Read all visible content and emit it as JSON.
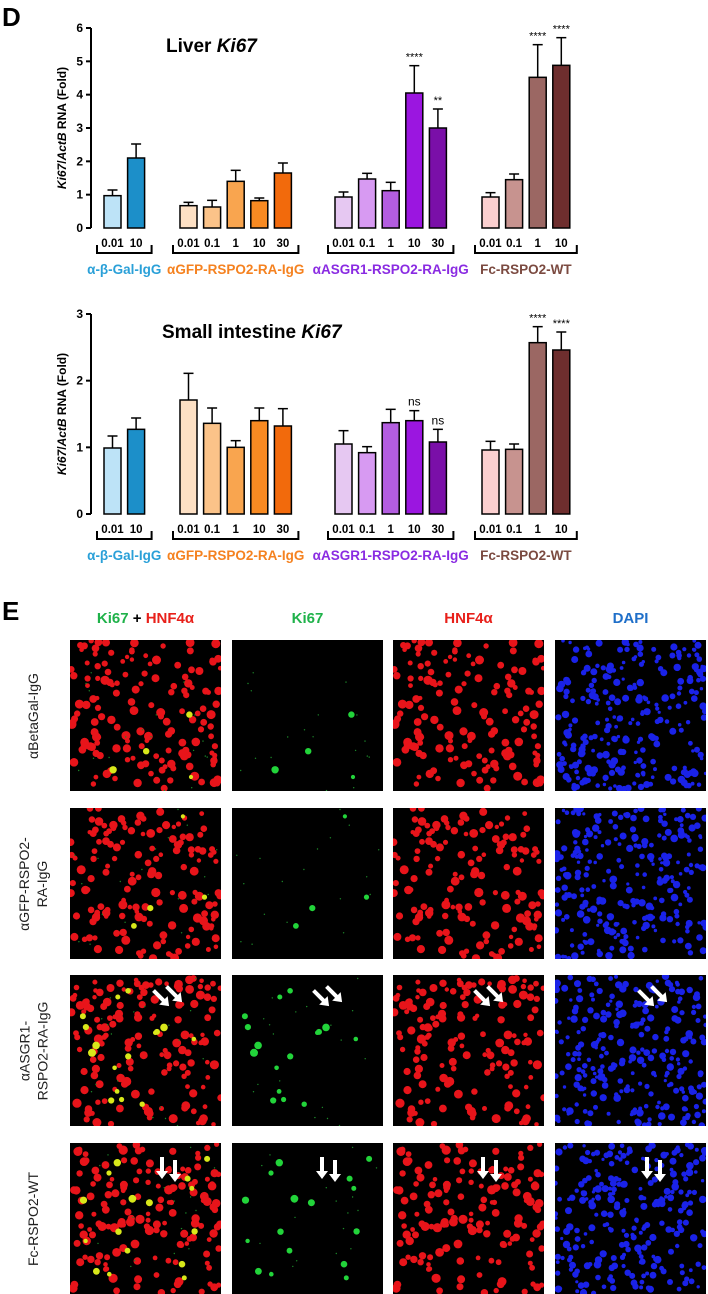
{
  "panel_d_letter": "D",
  "panel_e_letter": "E",
  "chart_data": [
    {
      "type": "bar",
      "title": "Liver Ki67",
      "title_plain": "Liver ",
      "title_italic": "Ki67",
      "ylabel_parts": [
        "Ki67",
        "/",
        "ActB",
        " RNA (Fold)"
      ],
      "ylim": [
        0,
        6
      ],
      "yticks": [
        0,
        1,
        2,
        3,
        4,
        5,
        6
      ],
      "groups": [
        {
          "name": "α-β-Gal-IgG",
          "color": "#2aa0d8",
          "doses": [
            "0.01",
            "10"
          ],
          "values": [
            0.97,
            2.1
          ],
          "errors": [
            0.17,
            0.42
          ],
          "colors": [
            "#bde3f7",
            "#1c8fc9"
          ],
          "sig": [
            "",
            ""
          ]
        },
        {
          "name": "αGFP-RSPO2-RA-IgG",
          "color": "#f58220",
          "doses": [
            "0.01",
            "0.1",
            "1",
            "10",
            "30"
          ],
          "values": [
            0.67,
            0.63,
            1.4,
            0.82,
            1.65
          ],
          "errors": [
            0.1,
            0.2,
            0.33,
            0.08,
            0.3
          ],
          "colors": [
            "#fde0c4",
            "#fbc389",
            "#f9a54f",
            "#f88a22",
            "#f26a0c"
          ],
          "sig": [
            "",
            "",
            "",
            "",
            ""
          ]
        },
        {
          "name": "αASGR1-RSPO2-RA-IgG",
          "color": "#8a2be2",
          "doses": [
            "0.01",
            "0.1",
            "1",
            "10",
            "30"
          ],
          "values": [
            0.93,
            1.47,
            1.12,
            4.05,
            3.0
          ],
          "errors": [
            0.15,
            0.17,
            0.25,
            0.82,
            0.57
          ],
          "colors": [
            "#e6c8f2",
            "#d79af2",
            "#b35de0",
            "#9b16e0",
            "#7a0fa8"
          ],
          "sig": [
            "",
            "",
            "",
            "****",
            "**"
          ]
        },
        {
          "name": "Fc-RSPO2-WT",
          "color": "#7b4a40",
          "doses": [
            "0.01",
            "0.1",
            "1",
            "10"
          ],
          "values": [
            0.93,
            1.45,
            4.52,
            4.88
          ],
          "errors": [
            0.13,
            0.17,
            0.98,
            0.83
          ],
          "colors": [
            "#fbcfcf",
            "#c7938f",
            "#9b6763",
            "#6e2e2e"
          ],
          "sig": [
            "",
            "",
            "****",
            "****"
          ]
        }
      ]
    },
    {
      "type": "bar",
      "title": "Small intestine Ki67",
      "title_plain": "Small intestine ",
      "title_italic": "Ki67",
      "ylabel_parts": [
        "Ki67",
        "/",
        "ActB",
        " RNA (Fold)"
      ],
      "ylim": [
        0,
        3
      ],
      "yticks": [
        0,
        1,
        2,
        3
      ],
      "groups": [
        {
          "name": "α-β-Gal-IgG",
          "color": "#2aa0d8",
          "doses": [
            "0.01",
            "10"
          ],
          "values": [
            0.99,
            1.27
          ],
          "errors": [
            0.18,
            0.17
          ],
          "colors": [
            "#bde3f7",
            "#1c8fc9"
          ],
          "sig": [
            "",
            ""
          ]
        },
        {
          "name": "αGFP-RSPO2-RA-IgG",
          "color": "#f58220",
          "doses": [
            "0.01",
            "0.1",
            "1",
            "10",
            "30"
          ],
          "values": [
            1.71,
            1.36,
            1.0,
            1.4,
            1.32
          ],
          "errors": [
            0.4,
            0.23,
            0.1,
            0.19,
            0.26
          ],
          "colors": [
            "#fde0c4",
            "#fbc389",
            "#f9a54f",
            "#f88a22",
            "#f26a0c"
          ],
          "sig": [
            "",
            "",
            "",
            "",
            ""
          ]
        },
        {
          "name": "αASGR1-RSPO2-RA-IgG",
          "color": "#8a2be2",
          "doses": [
            "0.01",
            "0.1",
            "1",
            "10",
            "30"
          ],
          "values": [
            1.05,
            0.92,
            1.37,
            1.4,
            1.08
          ],
          "errors": [
            0.2,
            0.09,
            0.2,
            0.15,
            0.19
          ],
          "colors": [
            "#e6c8f2",
            "#d79af2",
            "#b35de0",
            "#9b16e0",
            "#7a0fa8"
          ],
          "sig": [
            "",
            "",
            "",
            "ns",
            "ns"
          ]
        },
        {
          "name": "Fc-RSPO2-WT",
          "color": "#7b4a40",
          "doses": [
            "0.01",
            "0.1",
            "1",
            "10"
          ],
          "values": [
            0.96,
            0.97,
            2.57,
            2.46
          ],
          "errors": [
            0.13,
            0.08,
            0.24,
            0.27
          ],
          "colors": [
            "#fbcfcf",
            "#c7938f",
            "#9b6763",
            "#6e2e2e"
          ],
          "sig": [
            "",
            "",
            "****",
            "****"
          ]
        }
      ]
    }
  ],
  "panel_e": {
    "columns": [
      {
        "parts": [
          {
            "text": "Ki67",
            "color": "#1fb24a"
          },
          {
            "text": " + ",
            "color": "#000000"
          },
          {
            "text": "HNF4α",
            "color": "#e8201a"
          }
        ]
      },
      {
        "parts": [
          {
            "text": "Ki67",
            "color": "#1fb24a"
          }
        ]
      },
      {
        "parts": [
          {
            "text": "HNF4α",
            "color": "#e8201a"
          }
        ]
      },
      {
        "parts": [
          {
            "text": "DAPI",
            "color": "#1f6fc9"
          }
        ]
      }
    ],
    "rows": [
      {
        "label": "αBetaGal-IgG",
        "arrows": "none"
      },
      {
        "label": "αGFP-RSPO2-\nRA-IgG",
        "arrows": "none"
      },
      {
        "label": "αASGR1-\nRSPO2-RA-IgG",
        "arrows": "diagonal"
      },
      {
        "label": "Fc-RSPO2-WT",
        "arrows": "down"
      }
    ],
    "channel_kinds": [
      "merge",
      "green",
      "red",
      "blue"
    ],
    "ki67_density": [
      "sparse",
      "sparse",
      "high",
      "high"
    ]
  }
}
